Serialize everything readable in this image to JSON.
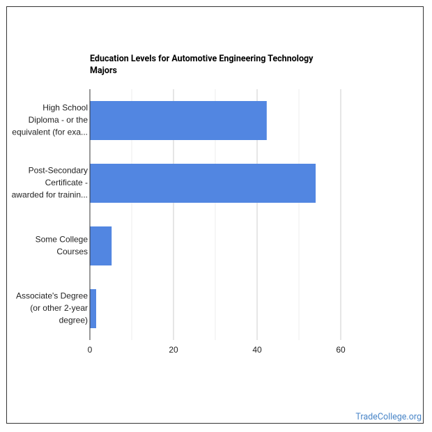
{
  "chart_data": {
    "type": "bar",
    "orientation": "horizontal",
    "title": "Education Levels for Automotive Engineering Technology Majors",
    "categories": [
      [
        "High School",
        "Diploma - or the",
        "equivalent (for exa..."
      ],
      [
        "Post-Secondary",
        "Certificate -",
        "awarded for trainin..."
      ],
      [
        "Some College",
        "Courses"
      ],
      [
        "Associate's Degree",
        "(or other 2-year",
        "degree)"
      ]
    ],
    "values": [
      42.3,
      54,
      5.2,
      1.5
    ],
    "color": "#5286e1",
    "xlim": [
      0,
      60
    ],
    "xticks": [
      0,
      20,
      40,
      60
    ],
    "minor_xticks": [
      10,
      30,
      50
    ],
    "grid": true
  },
  "footer": {
    "credit": "TradeCollege.org"
  }
}
